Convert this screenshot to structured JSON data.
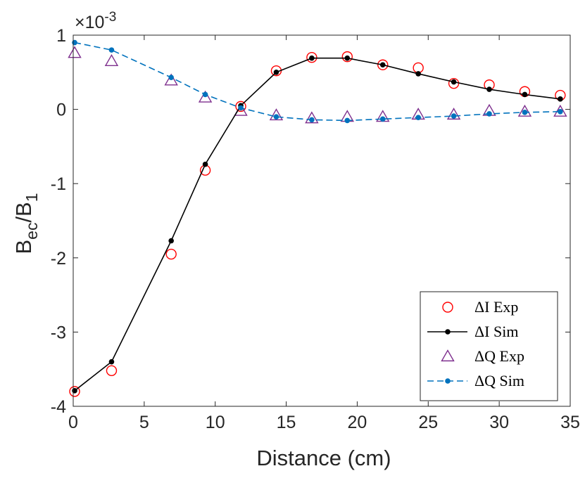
{
  "chart_data": {
    "type": "line",
    "title": "",
    "xlabel": "Distance (cm)",
    "ylabel": {
      "base": "B",
      "sub1": "ec",
      "slash": "/B",
      "sub2": "1"
    },
    "exponent": {
      "prefix": "×10",
      "power": "-3"
    },
    "xlim": [
      0,
      35
    ],
    "ylim": [
      -4,
      1
    ],
    "xticks": [
      0,
      5,
      10,
      15,
      20,
      25,
      30,
      35
    ],
    "yticks": [
      -4,
      -3,
      -2,
      -1,
      0,
      1
    ],
    "grid": false,
    "legend_position": "bottom-right",
    "series": [
      {
        "name": "ΔI Exp",
        "style": "markers",
        "marker": "circle",
        "color": "#ff0000",
        "x": [
          0.1,
          2.7,
          6.9,
          9.3,
          11.8,
          14.3,
          16.8,
          19.3,
          21.8,
          24.3,
          26.8,
          29.3,
          31.8,
          34.3
        ],
        "y": [
          -3.8,
          -3.52,
          -1.95,
          -0.82,
          0.04,
          0.52,
          0.7,
          0.71,
          0.6,
          0.56,
          0.35,
          0.33,
          0.24,
          0.19
        ]
      },
      {
        "name": "ΔI Sim",
        "style": "line-markers",
        "marker": "dot",
        "dash": "solid",
        "color": "#000000",
        "x": [
          0.1,
          2.7,
          6.9,
          9.3,
          11.8,
          14.3,
          16.8,
          19.3,
          21.8,
          24.3,
          26.8,
          29.3,
          31.8,
          34.3
        ],
        "y": [
          -3.79,
          -3.4,
          -1.77,
          -0.74,
          0.05,
          0.5,
          0.69,
          0.69,
          0.6,
          0.48,
          0.37,
          0.27,
          0.2,
          0.14
        ]
      },
      {
        "name": "ΔQ Exp",
        "style": "markers",
        "marker": "triangle",
        "color": "#7e2f8e",
        "x": [
          0.1,
          2.7,
          6.9,
          9.3,
          11.8,
          14.3,
          16.8,
          19.3,
          21.8,
          24.3,
          26.8,
          29.3,
          31.8,
          34.3
        ],
        "y": [
          0.76,
          0.65,
          0.39,
          0.16,
          -0.02,
          -0.08,
          -0.12,
          -0.1,
          -0.1,
          -0.07,
          -0.07,
          -0.02,
          -0.03,
          -0.03
        ]
      },
      {
        "name": "ΔQ Sim",
        "style": "line-markers",
        "marker": "dot",
        "dash": "dashed",
        "color": "#0072bd",
        "x": [
          0.1,
          2.7,
          6.9,
          9.3,
          11.8,
          14.3,
          16.8,
          19.3,
          21.8,
          24.3,
          26.8,
          29.3,
          31.8,
          34.3
        ],
        "y": [
          0.9,
          0.8,
          0.43,
          0.2,
          0.02,
          -0.1,
          -0.14,
          -0.15,
          -0.13,
          -0.11,
          -0.09,
          -0.06,
          -0.04,
          -0.03
        ]
      }
    ]
  }
}
